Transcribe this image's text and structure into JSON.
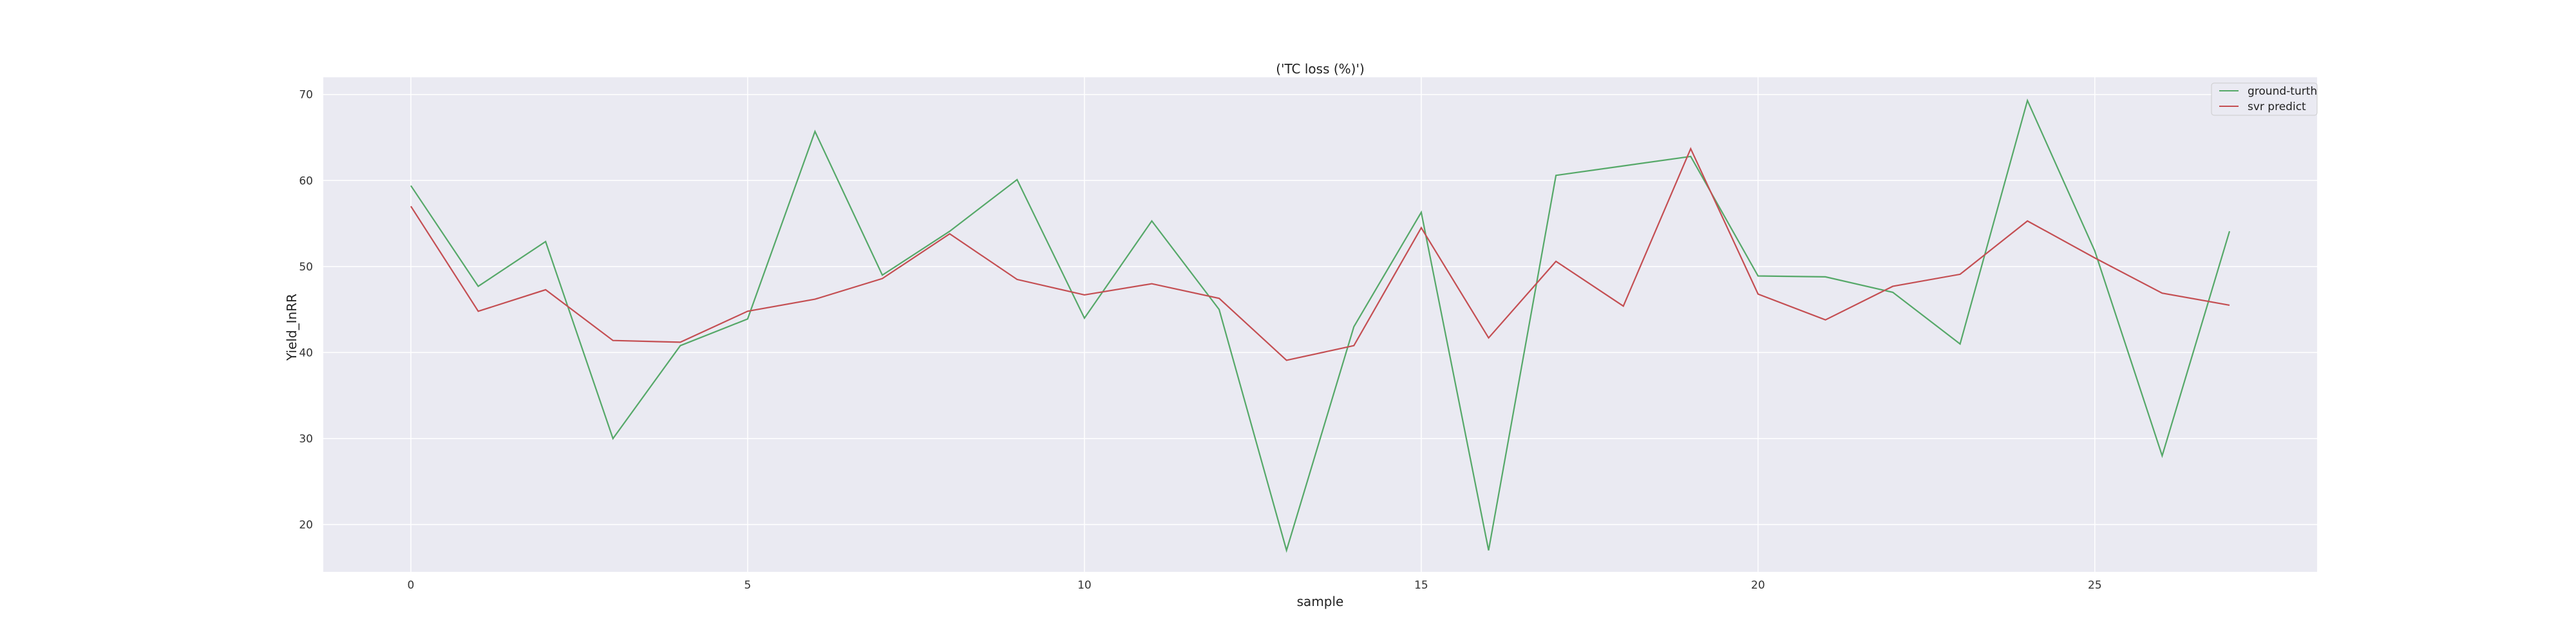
{
  "chart_data": {
    "type": "line",
    "title": "('TC loss (%)')",
    "xlabel": "sample",
    "ylabel": "Yield_InRR",
    "xlim": [
      -1.3,
      28.3
    ],
    "ylim": [
      14.5,
      72.0
    ],
    "x_ticks": [
      0,
      5,
      10,
      15,
      20,
      25
    ],
    "y_ticks": [
      20,
      30,
      40,
      50,
      60,
      70
    ],
    "grid": true,
    "legend_position": "top-right",
    "x": [
      0,
      1,
      2,
      3,
      4,
      5,
      6,
      7,
      8,
      9,
      10,
      11,
      12,
      13,
      14,
      15,
      16,
      17,
      18,
      19,
      20,
      21,
      22,
      23,
      24,
      25,
      26,
      27
    ],
    "series": [
      {
        "name": "ground-turth",
        "color": "#55a868",
        "values": [
          59.4,
          47.7,
          52.9,
          30.0,
          40.8,
          43.9,
          65.7,
          49.0,
          54.1,
          60.1,
          44.0,
          55.3,
          45.0,
          17.0,
          43.0,
          56.3,
          17.0,
          60.6,
          61.7,
          62.8,
          48.9,
          48.8,
          47.0,
          41.0,
          69.3,
          51.8,
          28.0,
          54.1
        ]
      },
      {
        "name": "svr predict",
        "color": "#c44e52",
        "values": [
          57.0,
          44.8,
          47.3,
          41.4,
          41.2,
          44.8,
          46.2,
          48.6,
          53.8,
          48.5,
          46.7,
          48.0,
          46.3,
          39.1,
          40.8,
          54.5,
          41.7,
          50.6,
          45.4,
          63.7,
          46.8,
          43.8,
          47.7,
          49.1,
          55.3,
          51.0,
          46.9,
          45.5
        ]
      }
    ],
    "colors": {
      "plot_background": "#eaeaf2",
      "grid": "#ffffff",
      "page_background": "#ffffff"
    }
  }
}
